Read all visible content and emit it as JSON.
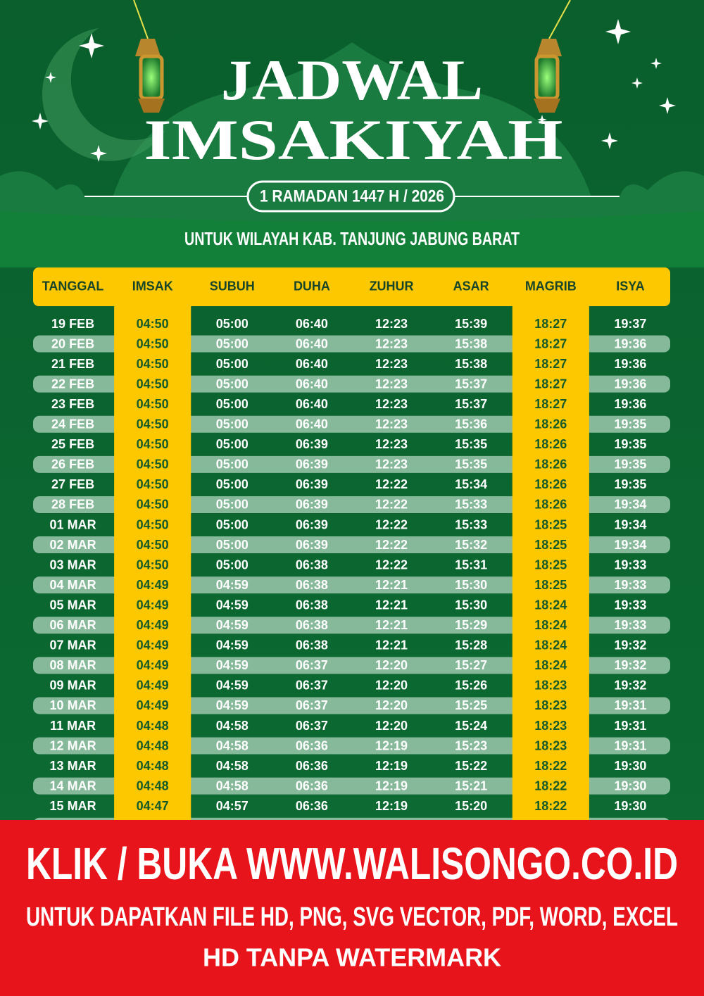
{
  "header": {
    "title_line1": "JADWAL",
    "title_line2": "IMSAKIYAH",
    "period": "1 RAMADAN 1447 H / 2026",
    "region": "UNTUK WILAYAH KAB. TANJUNG JABUNG BARAT"
  },
  "table": {
    "columns": [
      "TANGGAL",
      "IMSAK",
      "SUBUH",
      "DUHA",
      "ZUHUR",
      "ASAR",
      "MAGRIB",
      "ISYA"
    ],
    "rows": [
      [
        "19 FEB",
        "04:50",
        "05:00",
        "06:40",
        "12:23",
        "15:39",
        "18:27",
        "19:37"
      ],
      [
        "20 FEB",
        "04:50",
        "05:00",
        "06:40",
        "12:23",
        "15:38",
        "18:27",
        "19:36"
      ],
      [
        "21 FEB",
        "04:50",
        "05:00",
        "06:40",
        "12:23",
        "15:38",
        "18:27",
        "19:36"
      ],
      [
        "22 FEB",
        "04:50",
        "05:00",
        "06:40",
        "12:23",
        "15:37",
        "18:27",
        "19:36"
      ],
      [
        "23 FEB",
        "04:50",
        "05:00",
        "06:40",
        "12:23",
        "15:37",
        "18:27",
        "19:36"
      ],
      [
        "24 FEB",
        "04:50",
        "05:00",
        "06:40",
        "12:23",
        "15:36",
        "18:26",
        "19:35"
      ],
      [
        "25 FEB",
        "04:50",
        "05:00",
        "06:39",
        "12:23",
        "15:35",
        "18:26",
        "19:35"
      ],
      [
        "26 FEB",
        "04:50",
        "05:00",
        "06:39",
        "12:23",
        "15:35",
        "18:26",
        "19:35"
      ],
      [
        "27 FEB",
        "04:50",
        "05:00",
        "06:39",
        "12:22",
        "15:34",
        "18:26",
        "19:35"
      ],
      [
        "28 FEB",
        "04:50",
        "05:00",
        "06:39",
        "12:22",
        "15:33",
        "18:26",
        "19:34"
      ],
      [
        "01 MAR",
        "04:50",
        "05:00",
        "06:39",
        "12:22",
        "15:33",
        "18:25",
        "19:34"
      ],
      [
        "02 MAR",
        "04:50",
        "05:00",
        "06:39",
        "12:22",
        "15:32",
        "18:25",
        "19:34"
      ],
      [
        "03 MAR",
        "04:50",
        "05:00",
        "06:38",
        "12:22",
        "15:31",
        "18:25",
        "19:33"
      ],
      [
        "04 MAR",
        "04:49",
        "04:59",
        "06:38",
        "12:21",
        "15:30",
        "18:25",
        "19:33"
      ],
      [
        "05 MAR",
        "04:49",
        "04:59",
        "06:38",
        "12:21",
        "15:30",
        "18:24",
        "19:33"
      ],
      [
        "06 MAR",
        "04:49",
        "04:59",
        "06:38",
        "12:21",
        "15:29",
        "18:24",
        "19:33"
      ],
      [
        "07 MAR",
        "04:49",
        "04:59",
        "06:38",
        "12:21",
        "15:28",
        "18:24",
        "19:32"
      ],
      [
        "08 MAR",
        "04:49",
        "04:59",
        "06:37",
        "12:20",
        "15:27",
        "18:24",
        "19:32"
      ],
      [
        "09 MAR",
        "04:49",
        "04:59",
        "06:37",
        "12:20",
        "15:26",
        "18:23",
        "19:32"
      ],
      [
        "10 MAR",
        "04:49",
        "04:59",
        "06:37",
        "12:20",
        "15:25",
        "18:23",
        "19:31"
      ],
      [
        "11 MAR",
        "04:48",
        "04:58",
        "06:37",
        "12:20",
        "15:24",
        "18:23",
        "19:31"
      ],
      [
        "12 MAR",
        "04:48",
        "04:58",
        "06:36",
        "12:19",
        "15:23",
        "18:23",
        "19:31"
      ],
      [
        "13 MAR",
        "04:48",
        "04:58",
        "06:36",
        "12:19",
        "15:22",
        "18:22",
        "19:30"
      ],
      [
        "14 MAR",
        "04:48",
        "04:58",
        "06:36",
        "12:19",
        "15:21",
        "18:22",
        "19:30"
      ],
      [
        "15 MAR",
        "04:47",
        "04:57",
        "06:36",
        "12:19",
        "15:20",
        "18:22",
        "19:30"
      ]
    ]
  },
  "banner": {
    "headline": "KLIK / BUKA WWW.WALISONGO.CO.ID",
    "formats": "UNTUK DAPATKAN FILE HD, PNG, SVG VECTOR, PDF, WORD, EXCEL",
    "note": "HD TANPA WATERMARK"
  }
}
